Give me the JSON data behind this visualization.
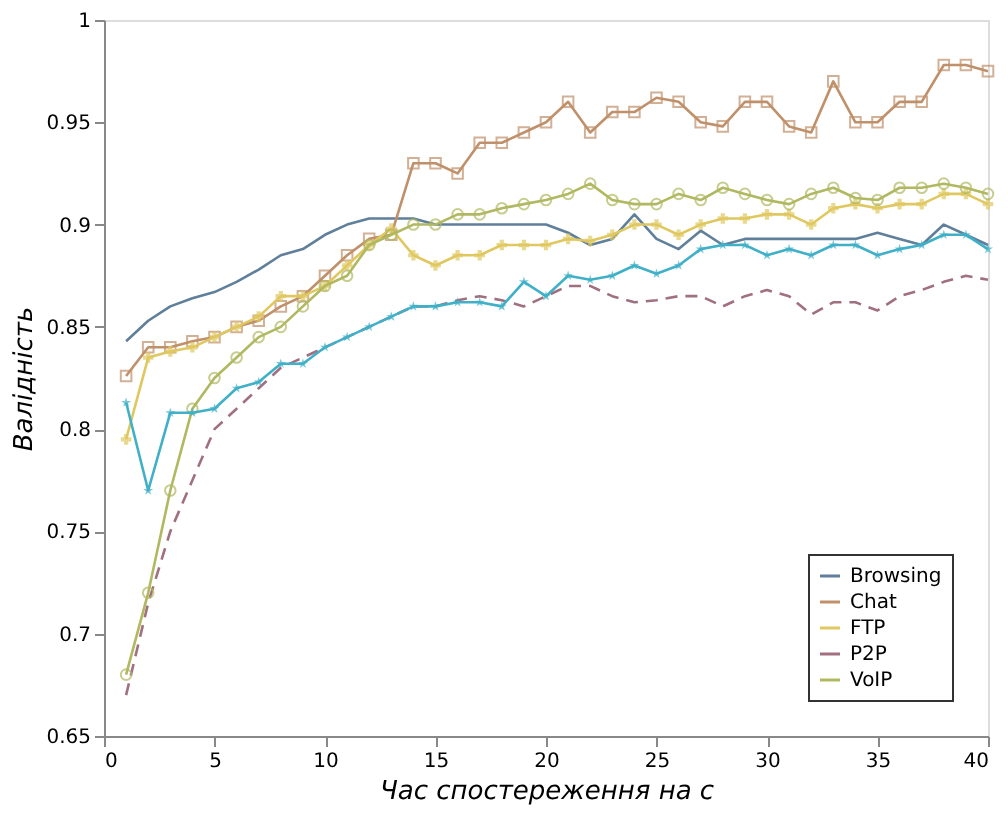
{
  "chart_data": {
    "type": "line",
    "xlabel": "Час спостереження на с",
    "ylabel": "Валідність",
    "x": [
      1,
      2,
      3,
      4,
      5,
      6,
      7,
      8,
      9,
      10,
      11,
      12,
      13,
      14,
      15,
      16,
      17,
      18,
      19,
      20,
      21,
      22,
      23,
      24,
      25,
      26,
      27,
      28,
      29,
      30,
      31,
      32,
      33,
      34,
      35,
      36,
      37,
      38,
      39,
      40
    ],
    "xlim": [
      0,
      40
    ],
    "xticks": [
      0,
      5,
      10,
      15,
      20,
      25,
      30,
      35,
      40
    ],
    "ylim": [
      0.65,
      1
    ],
    "yticks": [
      0.65,
      0.7,
      0.75,
      0.8,
      0.85,
      0.9,
      0.95,
      1
    ],
    "grid": false,
    "legend": "bottom right",
    "series": [
      {
        "name": "Browsing",
        "color": "#5f7f9a",
        "marker": "none",
        "line_style": "solid",
        "values": [
          0.843,
          0.853,
          0.86,
          0.864,
          0.867,
          0.872,
          0.878,
          0.885,
          0.888,
          0.895,
          0.9,
          0.903,
          0.903,
          0.903,
          0.9,
          0.9,
          0.9,
          0.9,
          0.9,
          0.9,
          0.896,
          0.89,
          0.893,
          0.905,
          0.893,
          0.888,
          0.897,
          0.89,
          0.893,
          0.893,
          0.893,
          0.893,
          0.893,
          0.893,
          0.896,
          0.893,
          0.89,
          0.9,
          0.895,
          0.89
        ]
      },
      {
        "name": "Chat",
        "color": "#c0906a",
        "marker": "square",
        "line_style": "solid",
        "values": [
          0.826,
          0.84,
          0.84,
          0.843,
          0.845,
          0.85,
          0.853,
          0.86,
          0.865,
          0.875,
          0.885,
          0.893,
          0.895,
          0.93,
          0.93,
          0.925,
          0.94,
          0.94,
          0.945,
          0.95,
          0.96,
          0.945,
          0.955,
          0.955,
          0.962,
          0.96,
          0.95,
          0.948,
          0.96,
          0.96,
          0.948,
          0.945,
          0.97,
          0.95,
          0.95,
          0.96,
          0.96,
          0.978,
          0.978,
          0.975
        ]
      },
      {
        "name": "FTP",
        "color": "#e0c860",
        "marker": "cross",
        "line_style": "solid",
        "values": [
          0.795,
          0.835,
          0.838,
          0.84,
          0.845,
          0.85,
          0.855,
          0.865,
          0.865,
          0.87,
          0.88,
          0.89,
          0.898,
          0.885,
          0.88,
          0.885,
          0.885,
          0.89,
          0.89,
          0.89,
          0.893,
          0.892,
          0.895,
          0.9,
          0.9,
          0.895,
          0.9,
          0.903,
          0.903,
          0.905,
          0.905,
          0.9,
          0.908,
          0.91,
          0.908,
          0.91,
          0.91,
          0.915,
          0.915,
          0.91
        ]
      },
      {
        "name": "P2P",
        "color": "#a07080",
        "marker": "none",
        "line_style": "dashed",
        "values": [
          0.67,
          0.715,
          0.75,
          0.775,
          0.8,
          0.81,
          0.82,
          0.83,
          0.835,
          0.84,
          0.845,
          0.85,
          0.855,
          0.86,
          0.86,
          0.863,
          0.865,
          0.863,
          0.86,
          0.865,
          0.87,
          0.87,
          0.865,
          0.862,
          0.863,
          0.865,
          0.865,
          0.86,
          0.865,
          0.868,
          0.865,
          0.856,
          0.862,
          0.862,
          0.858,
          0.865,
          0.868,
          0.872,
          0.875,
          0.873
        ]
      },
      {
        "name": "VoIP",
        "color": "#b0b860",
        "marker": "circle",
        "line_style": "solid",
        "values": [
          0.68,
          0.72,
          0.77,
          0.81,
          0.825,
          0.835,
          0.845,
          0.85,
          0.86,
          0.87,
          0.875,
          0.89,
          0.895,
          0.9,
          0.9,
          0.905,
          0.905,
          0.908,
          0.91,
          0.912,
          0.915,
          0.92,
          0.912,
          0.91,
          0.91,
          0.915,
          0.912,
          0.918,
          0.915,
          0.912,
          0.91,
          0.915,
          0.918,
          0.913,
          0.912,
          0.918,
          0.918,
          0.92,
          0.918,
          0.915
        ]
      },
      {
        "color": "#40b0c8",
        "marker": "star",
        "line_style": "solid",
        "values": [
          0.813,
          0.77,
          0.808,
          0.808,
          0.81,
          0.82,
          0.823,
          0.832,
          0.832,
          0.84,
          0.845,
          0.85,
          0.855,
          0.86,
          0.86,
          0.862,
          0.862,
          0.86,
          0.872,
          0.865,
          0.875,
          0.873,
          0.875,
          0.88,
          0.876,
          0.88,
          0.888,
          0.89,
          0.89,
          0.885,
          0.888,
          0.885,
          0.89,
          0.89,
          0.885,
          0.888,
          0.89,
          0.895,
          0.895,
          0.888
        ]
      }
    ]
  }
}
